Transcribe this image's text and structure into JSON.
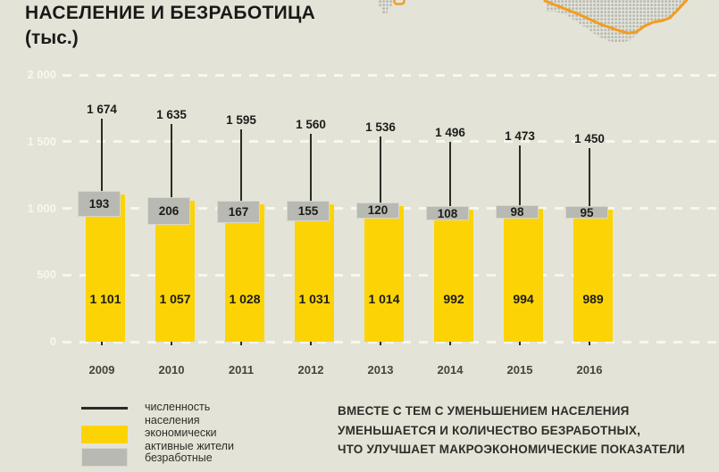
{
  "title": "НАСЕЛЕНИЕ И БЕЗРАБОТИЦА",
  "subtitle": "(тыс.)",
  "chart_data": {
    "type": "bar",
    "title": "НАСЕЛЕНИЕ И БЕЗРАБОТИЦА (тыс.)",
    "categories": [
      "2009",
      "2010",
      "2011",
      "2012",
      "2013",
      "2014",
      "2015",
      "2016"
    ],
    "series": [
      {
        "name": "численность населения",
        "style": "line-marker",
        "values": [
          1674,
          1635,
          1595,
          1560,
          1536,
          1496,
          1473,
          1450
        ],
        "labels": [
          "1 674",
          "1 635",
          "1 595",
          "1 560",
          "1 536",
          "1 496",
          "1 473",
          "1 450"
        ]
      },
      {
        "name": "экономически активные жители",
        "style": "yellow-bar",
        "values": [
          1101,
          1057,
          1028,
          1031,
          1014,
          992,
          994,
          989
        ],
        "labels": [
          "1 101",
          "1 057",
          "1 028",
          "1 031",
          "1 014",
          "992",
          "994",
          "989"
        ]
      },
      {
        "name": "безработные",
        "style": "gray-box",
        "values": [
          193,
          206,
          167,
          155,
          120,
          108,
          98,
          95
        ],
        "labels": [
          "193",
          "206",
          "167",
          "155",
          "120",
          "108",
          "98",
          "95"
        ]
      }
    ],
    "ylim": [
      0,
      2000
    ],
    "yticks": [
      {
        "value": 2000,
        "label": "2 000"
      },
      {
        "value": 1500,
        "label": "1 500"
      },
      {
        "value": 1000,
        "label": "1 000"
      },
      {
        "value": 500,
        "label": "500"
      },
      {
        "value": 0,
        "label": "0"
      }
    ],
    "grid": "horizontal dashed white",
    "legend_position": "bottom-left"
  },
  "legend": {
    "items": [
      {
        "swatch": "line",
        "label": "численность\nнаселения"
      },
      {
        "swatch": "yellow",
        "label": "экономически\nактивные жители"
      },
      {
        "swatch": "gray",
        "label": "безработные"
      }
    ]
  },
  "note": {
    "lines": [
      "ВМЕСТЕ С ТЕМ С УМЕНЬШЕНИЕМ НАСЕЛЕНИЯ",
      "УМЕНЬШАЕТСЯ И КОЛИЧЕСТВО БЕЗРАБОТНЫХ,",
      "ЧТО УЛУЧШАЕТ МАКРОЭКОНОМИЧЕСКИЕ ПОКАЗАТЕЛИ"
    ]
  },
  "colors": {
    "background": "#e3e4d7",
    "bar_yellow": "#fcd405",
    "box_gray": "#b9b9b4",
    "line_dark": "#2b2b28",
    "grid_white": "#f7f7ee",
    "map_orange": "#f39c1f",
    "map_dot": "#b3b3af"
  },
  "map": {
    "name": "region-dot-map"
  }
}
